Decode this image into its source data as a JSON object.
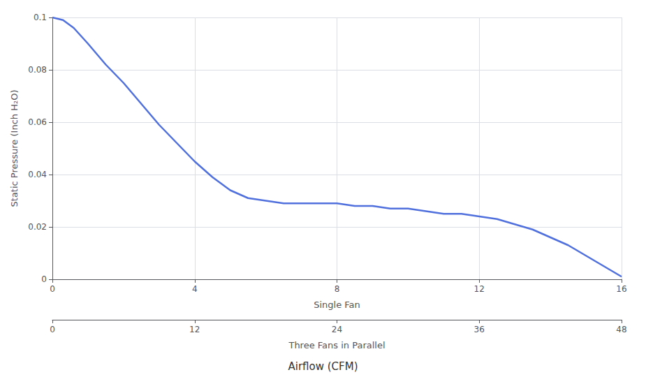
{
  "chart_data": {
    "type": "line",
    "xlabel": "Airflow (CFM)",
    "x1label": "Single Fan",
    "x2label": "Three Fans in Parallel",
    "ylabel": "Static Pressure (Inch H₂O)",
    "x": [
      0,
      0.3,
      0.6,
      1.0,
      1.5,
      2.0,
      2.5,
      3.0,
      3.5,
      4.0,
      4.5,
      5.0,
      5.5,
      6.0,
      6.5,
      7.0,
      7.5,
      8.0,
      8.5,
      9.0,
      9.5,
      10.0,
      10.5,
      11.0,
      11.5,
      12.0,
      12.5,
      13.0,
      13.5,
      14.0,
      14.5,
      15.0,
      15.5,
      16.0
    ],
    "values": [
      0.1,
      0.099,
      0.096,
      0.09,
      0.082,
      0.075,
      0.067,
      0.059,
      0.052,
      0.045,
      0.039,
      0.034,
      0.031,
      0.03,
      0.029,
      0.029,
      0.029,
      0.029,
      0.028,
      0.028,
      0.027,
      0.027,
      0.026,
      0.025,
      0.025,
      0.024,
      0.023,
      0.021,
      0.019,
      0.016,
      0.013,
      0.009,
      0.005,
      0.001
    ],
    "xlim": [
      0,
      16
    ],
    "xticks": [
      0,
      4,
      8,
      12,
      16
    ],
    "x2lim": [
      0,
      48
    ],
    "x2ticks": [
      0,
      12,
      24,
      36,
      48
    ],
    "ylim": [
      0,
      0.1
    ],
    "yticks": [
      0,
      0.02,
      0.04,
      0.06,
      0.08,
      0.1
    ],
    "grid": true
  }
}
